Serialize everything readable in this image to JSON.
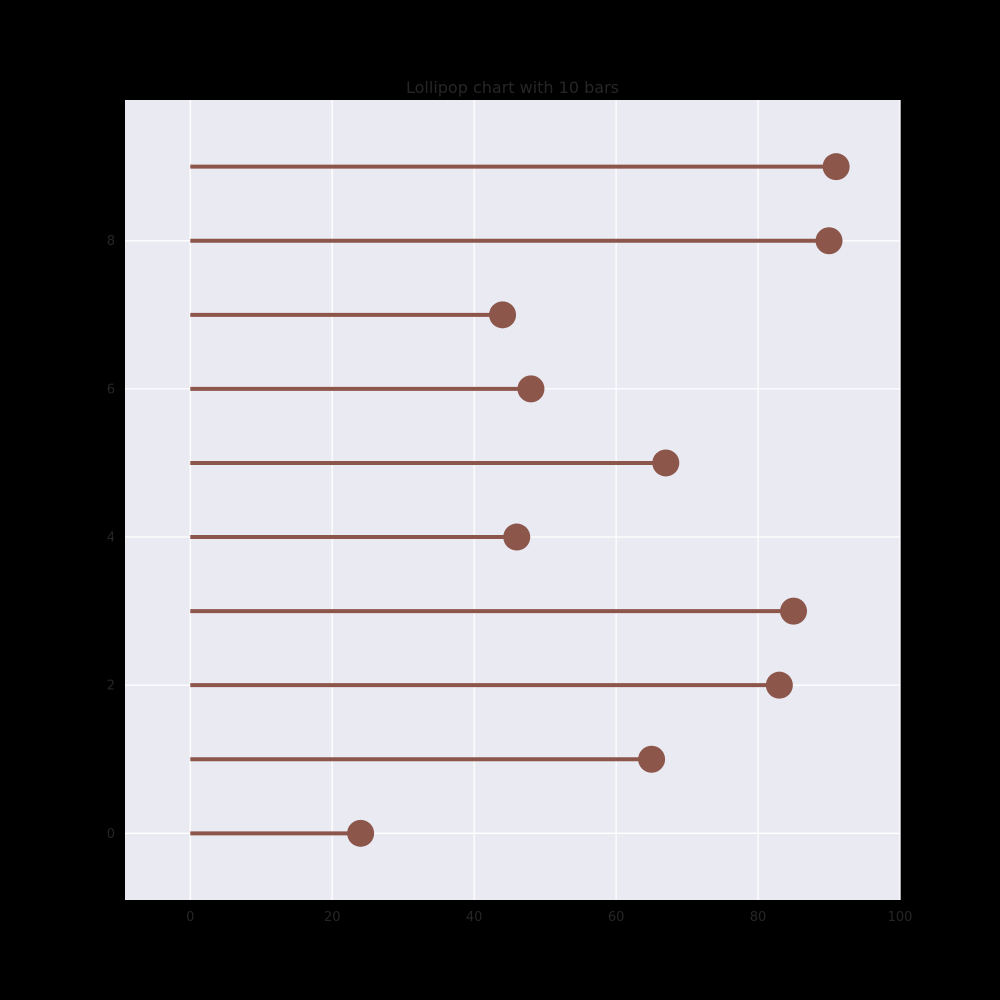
{
  "chart_data": {
    "type": "lollipop",
    "orientation": "horizontal",
    "title": "Lollipop chart with 10 bars",
    "xlabel": "",
    "ylabel": "",
    "categories": [
      0,
      1,
      2,
      3,
      4,
      5,
      6,
      7,
      8,
      9
    ],
    "values": [
      24,
      65,
      83,
      85,
      46,
      67,
      48,
      44,
      90,
      91
    ],
    "xlim": [
      -9.2,
      100
    ],
    "ylim": [
      -0.9,
      9.9
    ],
    "x_ticks": [
      0,
      20,
      40,
      60,
      80,
      100
    ],
    "y_ticks": [
      0,
      2,
      4,
      6,
      8
    ],
    "grid": true,
    "legend": "none",
    "colors": {
      "figure_background": "#000000",
      "plot_background": "#eaeaf2",
      "grid": "#ffffff",
      "stem": "#8c564b",
      "marker": "#8c564b",
      "text": "#262626"
    }
  }
}
